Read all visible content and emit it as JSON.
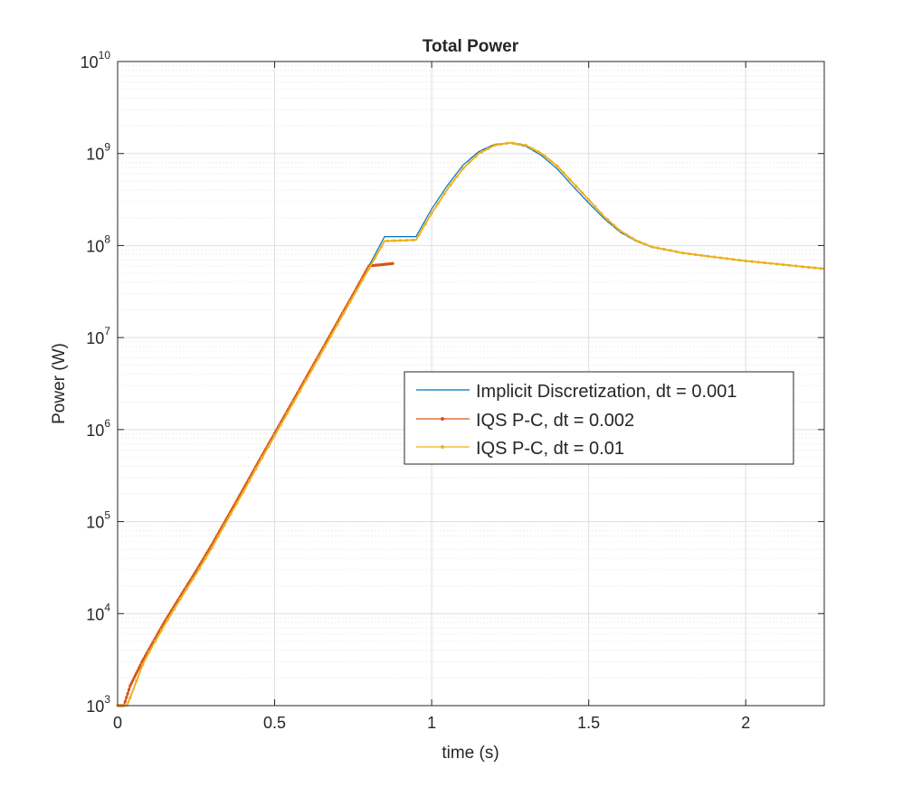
{
  "chart_data": {
    "type": "line",
    "title": "Total Power",
    "xlabel": "time (s)",
    "ylabel": "Power (W)",
    "xlim": [
      0,
      2.25
    ],
    "ylim": [
      1000,
      10000000000
    ],
    "yscale": "log",
    "grid": true,
    "minor_grid": true,
    "legend_position": "right-middle",
    "x_ticks": [
      {
        "value": 0,
        "label": "0"
      },
      {
        "value": 0.5,
        "label": "0.5"
      },
      {
        "value": 1,
        "label": "1"
      },
      {
        "value": 1.5,
        "label": "1.5"
      },
      {
        "value": 2,
        "label": "2"
      }
    ],
    "y_ticks": [
      {
        "value": 1000,
        "base": "10",
        "exp": "3"
      },
      {
        "value": 10000,
        "base": "10",
        "exp": "4"
      },
      {
        "value": 100000,
        "base": "10",
        "exp": "5"
      },
      {
        "value": 1000000,
        "base": "10",
        "exp": "6"
      },
      {
        "value": 10000000,
        "base": "10",
        "exp": "7"
      },
      {
        "value": 100000000,
        "base": "10",
        "exp": "8"
      },
      {
        "value": 1000000000,
        "base": "10",
        "exp": "9"
      },
      {
        "value": 10000000000,
        "base": "10",
        "exp": "10"
      }
    ],
    "series": [
      {
        "name": "Implicit Discretization, dt = 0.001",
        "color": "#0072BD",
        "marker": "none",
        "points": [
          [
            0,
            1000
          ],
          [
            0.02,
            1000
          ],
          [
            0.04,
            1600
          ],
          [
            0.08,
            3000
          ],
          [
            0.1,
            4000
          ],
          [
            0.15,
            8000
          ],
          [
            0.2,
            15000
          ],
          [
            0.25,
            28000
          ],
          [
            0.3,
            55000
          ],
          [
            0.35,
            110000
          ],
          [
            0.4,
            220000
          ],
          [
            0.45,
            450000
          ],
          [
            0.5,
            900000
          ],
          [
            0.55,
            1800000
          ],
          [
            0.6,
            3600000
          ],
          [
            0.65,
            7200000
          ],
          [
            0.7,
            14500000
          ],
          [
            0.75,
            29000000
          ],
          [
            0.8,
            60000000
          ],
          [
            0.85,
            125000000
          ],
          [
            0.9,
            60000000
          ],
          [
            0.95,
            125000000
          ],
          [
            1.0,
            250000000
          ],
          [
            1.05,
            450000000
          ],
          [
            1.1,
            750000000
          ],
          [
            1.15,
            1050000000
          ],
          [
            1.2,
            1260000000
          ],
          [
            1.25,
            1300000000
          ],
          [
            1.3,
            1200000000
          ],
          [
            1.35,
            950000000
          ],
          [
            1.4,
            680000000
          ],
          [
            1.45,
            440000000
          ],
          [
            1.5,
            290000000
          ],
          [
            1.55,
            195000000
          ],
          [
            1.6,
            140000000
          ],
          [
            1.65,
            112000000
          ],
          [
            1.7,
            96000000
          ],
          [
            1.8,
            83000000
          ],
          [
            1.9,
            75000000
          ],
          [
            2.0,
            68000000
          ],
          [
            2.1,
            63000000
          ],
          [
            2.2,
            58000000
          ],
          [
            2.25,
            56000000
          ]
        ]
      },
      {
        "name": "IQS P-C, dt = 0.002",
        "color": "#D95319",
        "marker": "dot",
        "points": [
          [
            0,
            1000
          ],
          [
            0.02,
            1000
          ],
          [
            0.04,
            1650
          ],
          [
            0.08,
            3100
          ],
          [
            0.1,
            4100
          ],
          [
            0.15,
            8200
          ],
          [
            0.2,
            15500
          ],
          [
            0.25,
            29000
          ],
          [
            0.3,
            56000
          ],
          [
            0.35,
            112000
          ],
          [
            0.4,
            225000
          ],
          [
            0.45,
            455000
          ],
          [
            0.5,
            910000
          ],
          [
            0.55,
            1820000
          ],
          [
            0.6,
            3650000
          ],
          [
            0.65,
            7300000
          ],
          [
            0.7,
            14700000
          ],
          [
            0.75,
            29500000
          ],
          [
            0.8,
            60000000
          ],
          [
            0.85,
            0
          ],
          [
            0.88,
            64000000
          ]
        ]
      },
      {
        "name": "IQS P-C, dt = 0.01",
        "color": "#EDB120",
        "marker": "dot",
        "points": [
          [
            0,
            1000
          ],
          [
            0.03,
            1000
          ],
          [
            0.05,
            1500
          ],
          [
            0.08,
            2800
          ],
          [
            0.1,
            3800
          ],
          [
            0.15,
            7600
          ],
          [
            0.2,
            14500
          ],
          [
            0.25,
            27000
          ],
          [
            0.3,
            52000
          ],
          [
            0.35,
            105000
          ],
          [
            0.4,
            210000
          ],
          [
            0.45,
            430000
          ],
          [
            0.5,
            860000
          ],
          [
            0.55,
            1720000
          ],
          [
            0.6,
            3450000
          ],
          [
            0.65,
            6900000
          ],
          [
            0.7,
            13900000
          ],
          [
            0.75,
            28000000
          ],
          [
            0.8,
            56000000
          ],
          [
            0.85,
            112000000
          ],
          [
            0.9,
            60000000
          ],
          [
            0.95,
            115000000
          ],
          [
            1.0,
            225000000
          ],
          [
            1.05,
            410000000
          ],
          [
            1.1,
            690000000
          ],
          [
            1.15,
            1000000000
          ],
          [
            1.2,
            1230000000
          ],
          [
            1.25,
            1310000000
          ],
          [
            1.3,
            1230000000
          ],
          [
            1.35,
            1000000000
          ],
          [
            1.4,
            730000000
          ],
          [
            1.45,
            480000000
          ],
          [
            1.5,
            315000000
          ],
          [
            1.55,
            205000000
          ],
          [
            1.6,
            145000000
          ],
          [
            1.65,
            114000000
          ],
          [
            1.7,
            97000000
          ],
          [
            1.8,
            83000000
          ],
          [
            1.9,
            75000000
          ],
          [
            2.0,
            68000000
          ],
          [
            2.1,
            63000000
          ],
          [
            2.2,
            58000000
          ],
          [
            2.25,
            56000000
          ]
        ]
      }
    ]
  }
}
